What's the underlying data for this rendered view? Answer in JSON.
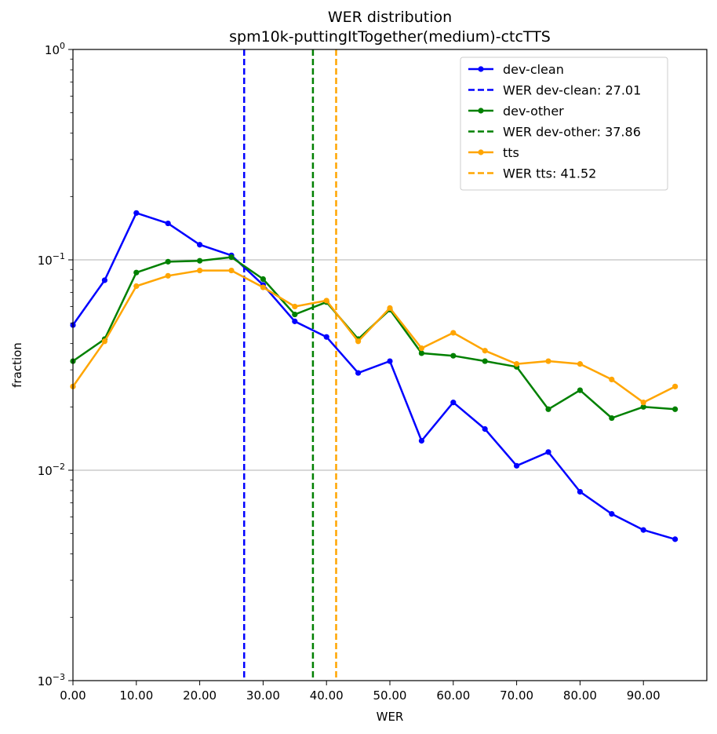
{
  "chart_data": {
    "type": "line",
    "title": "WER distribution",
    "subtitle": "spm10k-puttingItTogether(medium)-ctcTTS",
    "xlabel": "WER",
    "ylabel": "fraction",
    "xlim": [
      0,
      100
    ],
    "ylim": [
      0.001,
      1
    ],
    "yscale": "log",
    "grid": "horizontal major",
    "legend_position": "top-right",
    "xtick_labels": [
      "0.00",
      "10.00",
      "20.00",
      "30.00",
      "40.00",
      "50.00",
      "60.00",
      "70.00",
      "80.00",
      "90.00"
    ],
    "xticks": [
      0,
      10,
      20,
      30,
      40,
      50,
      60,
      70,
      80,
      90
    ],
    "yticks": [
      {
        "value": 1,
        "base": "10",
        "exp": "0"
      },
      {
        "value": 0.1,
        "base": "10",
        "exp": "−1"
      },
      {
        "value": 0.01,
        "base": "10",
        "exp": "−2"
      },
      {
        "value": 0.001,
        "base": "10",
        "exp": "−3"
      }
    ],
    "x": [
      0,
      5,
      10,
      15,
      20,
      25,
      30,
      35,
      40,
      45,
      50,
      55,
      60,
      65,
      70,
      75,
      80,
      85,
      90,
      95
    ],
    "series": [
      {
        "name": "dev-clean",
        "color": "#0000ff",
        "values": [
          0.049,
          0.08,
          0.167,
          0.149,
          0.118,
          0.105,
          0.076,
          0.051,
          0.043,
          0.029,
          0.033,
          0.0138,
          0.021,
          0.0157,
          0.0105,
          0.0122,
          0.0079,
          0.0062,
          0.0052,
          0.0047
        ]
      },
      {
        "name": "dev-other",
        "color": "#008000",
        "values": [
          0.033,
          0.042,
          0.087,
          0.098,
          0.099,
          0.103,
          0.081,
          0.055,
          0.063,
          0.042,
          0.058,
          0.036,
          0.035,
          0.033,
          0.031,
          0.0195,
          0.024,
          0.0177,
          0.02,
          0.0195
        ]
      },
      {
        "name": "tts",
        "color": "#ffa500",
        "values": [
          0.025,
          0.041,
          0.075,
          0.084,
          0.089,
          0.089,
          0.074,
          0.06,
          0.064,
          0.041,
          0.059,
          0.038,
          0.045,
          0.037,
          0.032,
          0.033,
          0.032,
          0.027,
          0.021,
          0.025
        ]
      }
    ],
    "vlines": [
      {
        "name": "WER dev-clean: 27.01",
        "x": 27.01,
        "color": "#0000ff"
      },
      {
        "name": "WER dev-other: 37.86",
        "x": 37.86,
        "color": "#008000"
      },
      {
        "name": "WER tts: 41.52",
        "x": 41.52,
        "color": "#ffa500"
      }
    ],
    "legend": [
      {
        "label": "dev-clean",
        "color": "#0000ff",
        "style": "solid-marker"
      },
      {
        "label": "WER dev-clean: 27.01",
        "color": "#0000ff",
        "style": "dashed"
      },
      {
        "label": "dev-other",
        "color": "#008000",
        "style": "solid-marker"
      },
      {
        "label": "WER dev-other: 37.86",
        "color": "#008000",
        "style": "dashed"
      },
      {
        "label": "tts",
        "color": "#ffa500",
        "style": "solid-marker"
      },
      {
        "label": "WER tts: 41.52",
        "color": "#ffa500",
        "style": "dashed"
      }
    ]
  }
}
